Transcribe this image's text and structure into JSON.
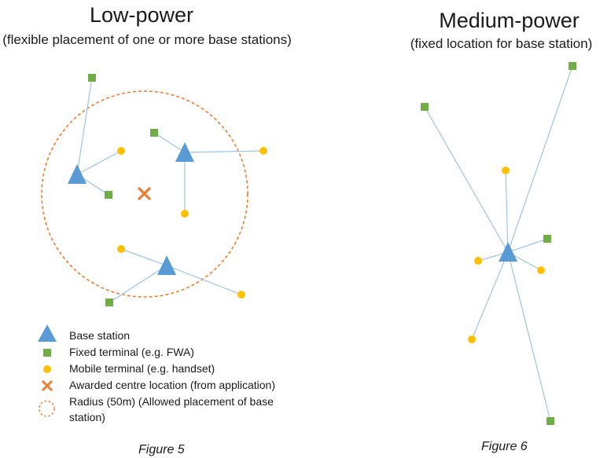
{
  "low_power": {
    "title": "Low-power",
    "subtitle": "(flexible placement of one or more base stations)"
  },
  "medium_power": {
    "title": "Medium-power",
    "subtitle": "(fixed location for base station)"
  },
  "legend": {
    "base_station": "Base station",
    "fixed_terminal": "Fixed terminal (e.g. FWA)",
    "mobile_terminal": "Mobile terminal (e.g. handset)",
    "awarded_centre": "Awarded centre location (from application)",
    "radius": "Radius (50m) (Allowed placement of base station)"
  },
  "captions": {
    "figure5": "Figure 5",
    "figure6": "Figure 6"
  },
  "colors": {
    "base_station": "#5b9bd5",
    "fixed_terminal": "#70ad47",
    "mobile_terminal": "#ffc000",
    "awarded_centre": "#ed7d31",
    "radius": "#ed7d31",
    "link_line": "#9dc3e6"
  }
}
